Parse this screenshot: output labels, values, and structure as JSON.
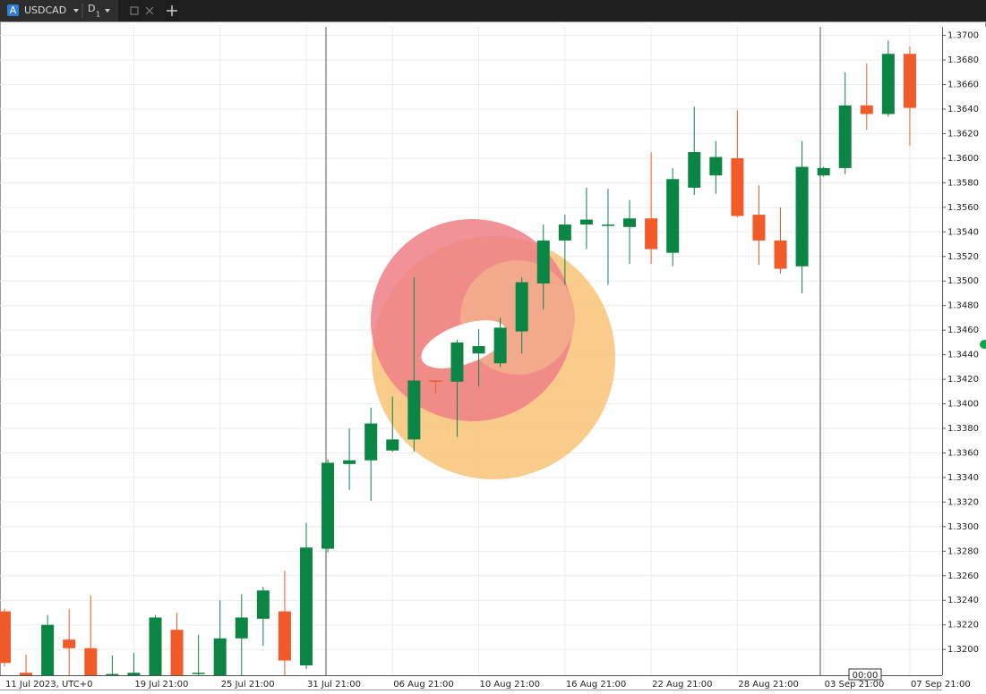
{
  "ui": {
    "icon_letter": "A",
    "symbol": "USDCAD",
    "timeframe": "D",
    "timeframe_sub": "1",
    "time_box": "00:00"
  },
  "chart_data": {
    "type": "candlestick",
    "categories": [
      "11 Jul 2023, UTC+0",
      null,
      null,
      null,
      null,
      null,
      "19 Jul 21:00",
      null,
      null,
      null,
      "25 Jul 21:00",
      null,
      null,
      null,
      "31 Jul 21:00",
      null,
      null,
      null,
      "06 Aug 21:00",
      null,
      null,
      null,
      "10 Aug 21:00",
      null,
      null,
      null,
      "16 Aug 21:00",
      null,
      null,
      null,
      "22 Aug 21:00",
      null,
      null,
      null,
      "28 Aug 21:00",
      null,
      null,
      null,
      "03 Sep 21:00",
      null,
      null,
      null,
      "07 Sep 21:00"
    ],
    "open": [
      1.3231,
      1.3181,
      1.3179,
      1.3208,
      1.3201,
      1.318,
      1.3179,
      1.3179,
      1.3216,
      1.318,
      1.3179,
      1.3209,
      1.3225,
      1.3231,
      1.3187,
      1.3282,
      1.3351,
      1.3354,
      1.3362,
      1.3371,
      1.3419,
      1.3418,
      1.3441,
      1.3433,
      1.3459,
      1.3498,
      1.3533,
      1.3546,
      1.3545,
      1.3544,
      1.3551,
      1.3523,
      1.3576,
      1.3586,
      1.36,
      1.3554,
      1.3533,
      1.3512,
      1.3586,
      1.3592,
      1.3643,
      1.3636,
      1.3685
    ],
    "high": [
      1.3233,
      1.3196,
      1.3228,
      1.3233,
      1.3244,
      1.3195,
      1.3197,
      1.3228,
      1.323,
      1.3212,
      1.324,
      1.3245,
      1.3251,
      1.3264,
      1.3303,
      1.3355,
      1.338,
      1.3397,
      1.3406,
      1.3503,
      1.3419,
      1.3452,
      1.3461,
      1.347,
      1.3503,
      1.3546,
      1.3554,
      1.3576,
      1.3575,
      1.3566,
      1.3605,
      1.3592,
      1.3642,
      1.3614,
      1.3639,
      1.3578,
      1.356,
      1.3614,
      1.3593,
      1.367,
      1.3677,
      1.3696,
      1.3691
    ],
    "low": [
      1.3186,
      1.3179,
      1.3179,
      1.3179,
      1.3179,
      1.3179,
      1.3179,
      1.3179,
      1.3179,
      1.3179,
      1.3179,
      1.3179,
      1.3203,
      1.3179,
      1.3184,
      1.3279,
      1.333,
      1.3321,
      1.3361,
      1.3361,
      1.3408,
      1.3373,
      1.3414,
      1.343,
      1.3441,
      1.3477,
      1.3497,
      1.3526,
      1.3497,
      1.3514,
      1.3514,
      1.3512,
      1.357,
      1.3571,
      1.3552,
      1.3513,
      1.3506,
      1.349,
      1.3585,
      1.3587,
      1.3623,
      1.3634,
      1.361
    ],
    "close": [
      1.3189,
      1.3179,
      1.322,
      1.3201,
      1.3179,
      1.318,
      1.3181,
      1.3226,
      1.3179,
      1.3181,
      1.3209,
      1.3226,
      1.3248,
      1.3191,
      1.3283,
      1.3352,
      1.3354,
      1.3384,
      1.3371,
      1.3419,
      1.3418,
      1.345,
      1.3447,
      1.3462,
      1.3499,
      1.3533,
      1.3546,
      1.355,
      1.3546,
      1.3551,
      1.3526,
      1.3583,
      1.3605,
      1.3601,
      1.3553,
      1.3533,
      1.351,
      1.3593,
      1.3592,
      1.3643,
      1.3636,
      1.3685,
      1.3641
    ],
    "up_color": "#0b8543",
    "down_color": "#f15a29",
    "ylim": [
      1.3179,
      1.3707
    ],
    "yticks": [
      {
        "value": 1.32,
        "label": "1.3200"
      },
      {
        "value": 1.322,
        "label": "1.3220"
      },
      {
        "value": 1.324,
        "label": "1.3240"
      },
      {
        "value": 1.326,
        "label": "1.3260"
      },
      {
        "value": 1.328,
        "label": "1.3280"
      },
      {
        "value": 1.33,
        "label": "1.3300"
      },
      {
        "value": 1.332,
        "label": "1.3320"
      },
      {
        "value": 1.334,
        "label": "1.3340"
      },
      {
        "value": 1.336,
        "label": "1.3360"
      },
      {
        "value": 1.338,
        "label": "1.3380"
      },
      {
        "value": 1.34,
        "label": "1.3400"
      },
      {
        "value": 1.342,
        "label": "1.3420"
      },
      {
        "value": 1.344,
        "label": "1.3440"
      },
      {
        "value": 1.346,
        "label": "1.3460"
      },
      {
        "value": 1.348,
        "label": "1.3480"
      },
      {
        "value": 1.35,
        "label": "1.3500"
      },
      {
        "value": 1.352,
        "label": "1.3520"
      },
      {
        "value": 1.354,
        "label": "1.3540"
      },
      {
        "value": 1.356,
        "label": "1.3560"
      },
      {
        "value": 1.358,
        "label": "1.3580"
      },
      {
        "value": 1.36,
        "label": "1.3600"
      },
      {
        "value": 1.362,
        "label": "1.3620"
      },
      {
        "value": 1.364,
        "label": "1.3640"
      },
      {
        "value": 1.366,
        "label": "1.3660"
      },
      {
        "value": 1.368,
        "label": "1.3680"
      },
      {
        "value": 1.37,
        "label": "1.3700"
      }
    ],
    "grid": true
  }
}
